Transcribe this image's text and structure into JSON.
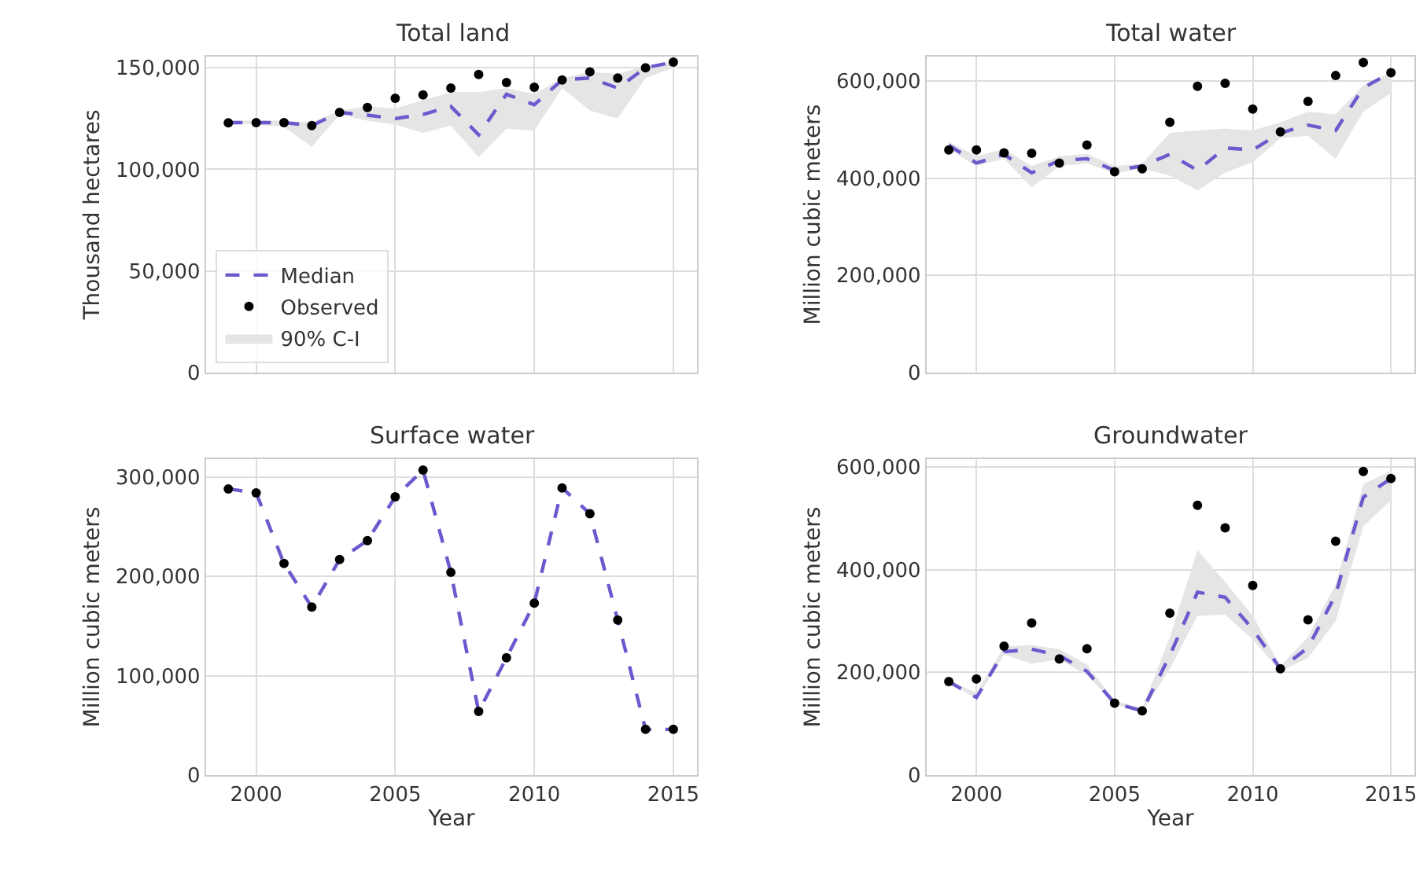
{
  "chart_data": [
    {
      "type": "line",
      "title": "Total land",
      "ylabel": "Thousand hectares",
      "x": [
        1999,
        2000,
        2001,
        2002,
        2003,
        2004,
        2005,
        2006,
        2007,
        2008,
        2009,
        2010,
        2011,
        2012,
        2013,
        2014,
        2015
      ],
      "xlim": [
        1998.2,
        2015.85
      ],
      "xticks": [
        2000,
        2005,
        2010,
        2015
      ],
      "ylim": [
        0,
        155500
      ],
      "yticks": [
        {
          "value": 0,
          "label": "0"
        },
        {
          "value": 50000,
          "label": "50,000"
        },
        {
          "value": 100000,
          "label": "100,000"
        },
        {
          "value": 150000,
          "label": "150,000"
        }
      ],
      "grid": true,
      "legend": "bottom left",
      "tick_labels": "y",
      "series": [
        {
          "name": "90% C-I",
          "type": "area",
          "color": "#e5e5e5",
          "values": [
            null,
            null,
            null,
            null,
            null,
            null,
            null,
            null,
            null,
            null,
            null,
            null,
            null,
            null,
            null,
            null,
            null
          ],
          "lower": [
            123000,
            122000,
            121000,
            111000,
            127000,
            124000,
            122000,
            118000,
            121600,
            106000,
            120000,
            119000,
            140000,
            129000,
            125000,
            145000,
            150000
          ],
          "upper": [
            124000,
            124000,
            124000,
            123000,
            129000,
            131000,
            130000,
            134000,
            138000,
            138000,
            140000,
            137000,
            145000,
            148000,
            147000,
            151000,
            153000
          ]
        },
        {
          "name": "Median",
          "color": "#6a5acd",
          "line_style": "dashed",
          "marker": "none",
          "values": [
            123000,
            123000,
            123000,
            121600,
            128000,
            126700,
            125000,
            127000,
            131000,
            117000,
            137000,
            131800,
            144000,
            145000,
            140000,
            150000,
            152800
          ]
        },
        {
          "name": "Observed",
          "type": "scatter",
          "color": "#000000",
          "marker": "circle",
          "values": [
            122900,
            123000,
            123000,
            121600,
            128000,
            130500,
            135000,
            136600,
            140000,
            146700,
            142700,
            140400,
            144000,
            148000,
            145000,
            150000,
            152800
          ]
        }
      ]
    },
    {
      "type": "line",
      "title": "Total water",
      "ylabel": "Million cubic meters",
      "x": [
        1999,
        2000,
        2001,
        2002,
        2003,
        2004,
        2005,
        2006,
        2007,
        2008,
        2009,
        2010,
        2011,
        2012,
        2013,
        2014,
        2015
      ],
      "xlim": [
        1998.2,
        2015.85
      ],
      "xticks": [
        2000,
        2005,
        2010,
        2015
      ],
      "ylim": [
        0,
        650000
      ],
      "yticks": [
        {
          "value": 0,
          "label": "0"
        },
        {
          "value": 200000,
          "label": "200,000"
        },
        {
          "value": 400000,
          "label": "400,000"
        },
        {
          "value": 600000,
          "label": "600,000"
        }
      ],
      "grid": true,
      "tick_labels": "y",
      "series": [
        {
          "type": "area",
          "color": "#e5e5e5",
          "values": [
            null,
            null,
            null,
            null,
            null,
            null,
            null,
            null,
            null,
            null,
            null,
            null,
            null,
            null,
            null,
            null,
            null
          ],
          "lower": [
            460000,
            425000,
            440000,
            381000,
            425000,
            430000,
            410000,
            420000,
            405000,
            375000,
            411000,
            433000,
            482000,
            487000,
            440000,
            537000,
            575000
          ],
          "upper": [
            475000,
            445000,
            460000,
            425000,
            445000,
            450000,
            425000,
            430000,
            493000,
            498000,
            502000,
            498000,
            515000,
            537000,
            531000,
            591000,
            618000
          ]
        },
        {
          "color": "#6a5acd",
          "line_style": "dashed",
          "marker": "none",
          "values": [
            468000,
            431000,
            449000,
            411000,
            436000,
            440000,
            416000,
            425000,
            449000,
            416000,
            462000,
            458000,
            493000,
            509000,
            498000,
            586000,
            617000
          ]
        },
        {
          "type": "scatter",
          "color": "#000000",
          "marker": "circle",
          "values": [
            458000,
            458000,
            452000,
            451000,
            431000,
            468000,
            413000,
            419000,
            515000,
            589000,
            595000,
            542000,
            495000,
            558000,
            611000,
            638000,
            617000
          ]
        }
      ]
    },
    {
      "type": "line",
      "title": "Surface water",
      "xlabel": "Year",
      "ylabel": "Million cubic meters",
      "x": [
        1999,
        2000,
        2001,
        2002,
        2003,
        2004,
        2005,
        2006,
        2007,
        2008,
        2009,
        2010,
        2011,
        2012,
        2013,
        2014,
        2015
      ],
      "xlim": [
        1998.2,
        2015.85
      ],
      "xticks": [
        2000,
        2005,
        2010,
        2015
      ],
      "ylim": [
        0,
        318000
      ],
      "yticks": [
        {
          "value": 0,
          "label": "0"
        },
        {
          "value": 100000,
          "label": "100,000"
        },
        {
          "value": 200000,
          "label": "200,000"
        },
        {
          "value": 300000,
          "label": "300,000"
        }
      ],
      "grid": true,
      "series": [
        {
          "color": "#6a5acd",
          "line_style": "dashed",
          "marker": "none",
          "values": [
            288000,
            284000,
            213000,
            169000,
            217000,
            236000,
            280000,
            307000,
            204000,
            64000,
            118000,
            173000,
            289000,
            263000,
            156000,
            46000,
            46000
          ]
        },
        {
          "type": "scatter",
          "color": "#000000",
          "marker": "circle",
          "values": [
            288000,
            284000,
            213000,
            169000,
            217000,
            236000,
            280000,
            307000,
            204000,
            64000,
            118000,
            173000,
            289000,
            263000,
            156000,
            46000,
            46000
          ]
        }
      ]
    },
    {
      "type": "line",
      "title": "Groundwater",
      "xlabel": "Year",
      "ylabel": "Million cubic meters",
      "x": [
        1999,
        2000,
        2001,
        2002,
        2003,
        2004,
        2005,
        2006,
        2007,
        2008,
        2009,
        2010,
        2011,
        2012,
        2013,
        2014,
        2015
      ],
      "xlim": [
        1998.2,
        2015.85
      ],
      "xticks": [
        2000,
        2005,
        2010,
        2015
      ],
      "ylim": [
        0,
        615000
      ],
      "yticks": [
        {
          "value": 0,
          "label": "0"
        },
        {
          "value": 200000,
          "label": "200,000"
        },
        {
          "value": 400000,
          "label": "400,000"
        },
        {
          "value": 600000,
          "label": "600,000"
        }
      ],
      "grid": true,
      "series": [
        {
          "type": "area",
          "color": "#e5e5e5",
          "values": [
            null,
            null,
            null,
            null,
            null,
            null,
            null,
            null,
            null,
            null,
            null,
            null,
            null,
            null,
            null,
            null,
            null
          ],
          "lower": [
            180000,
            148000,
            235000,
            217000,
            225000,
            195000,
            138000,
            122000,
            207000,
            310000,
            312000,
            264000,
            202000,
            228000,
            300000,
            484000,
            535000
          ],
          "upper": [
            185000,
            160000,
            250000,
            253000,
            245000,
            215000,
            145000,
            130000,
            269000,
            438000,
            376000,
            310000,
            212000,
            269000,
            371000,
            566000,
            592000
          ]
        },
        {
          "color": "#6a5acd",
          "line_style": "dashed",
          "marker": "none",
          "values": [
            182000,
            151000,
            240000,
            245000,
            233000,
            202000,
            140000,
            125000,
            233000,
            356000,
            346000,
            284000,
            207000,
            248000,
            351000,
            541000,
            577000
          ]
        },
        {
          "type": "scatter",
          "color": "#000000",
          "marker": "circle",
          "values": [
            182000,
            187000,
            251000,
            296000,
            226000,
            246000,
            140000,
            125000,
            315000,
            525000,
            481000,
            369000,
            207000,
            302000,
            455000,
            591000,
            577000
          ]
        }
      ]
    }
  ]
}
